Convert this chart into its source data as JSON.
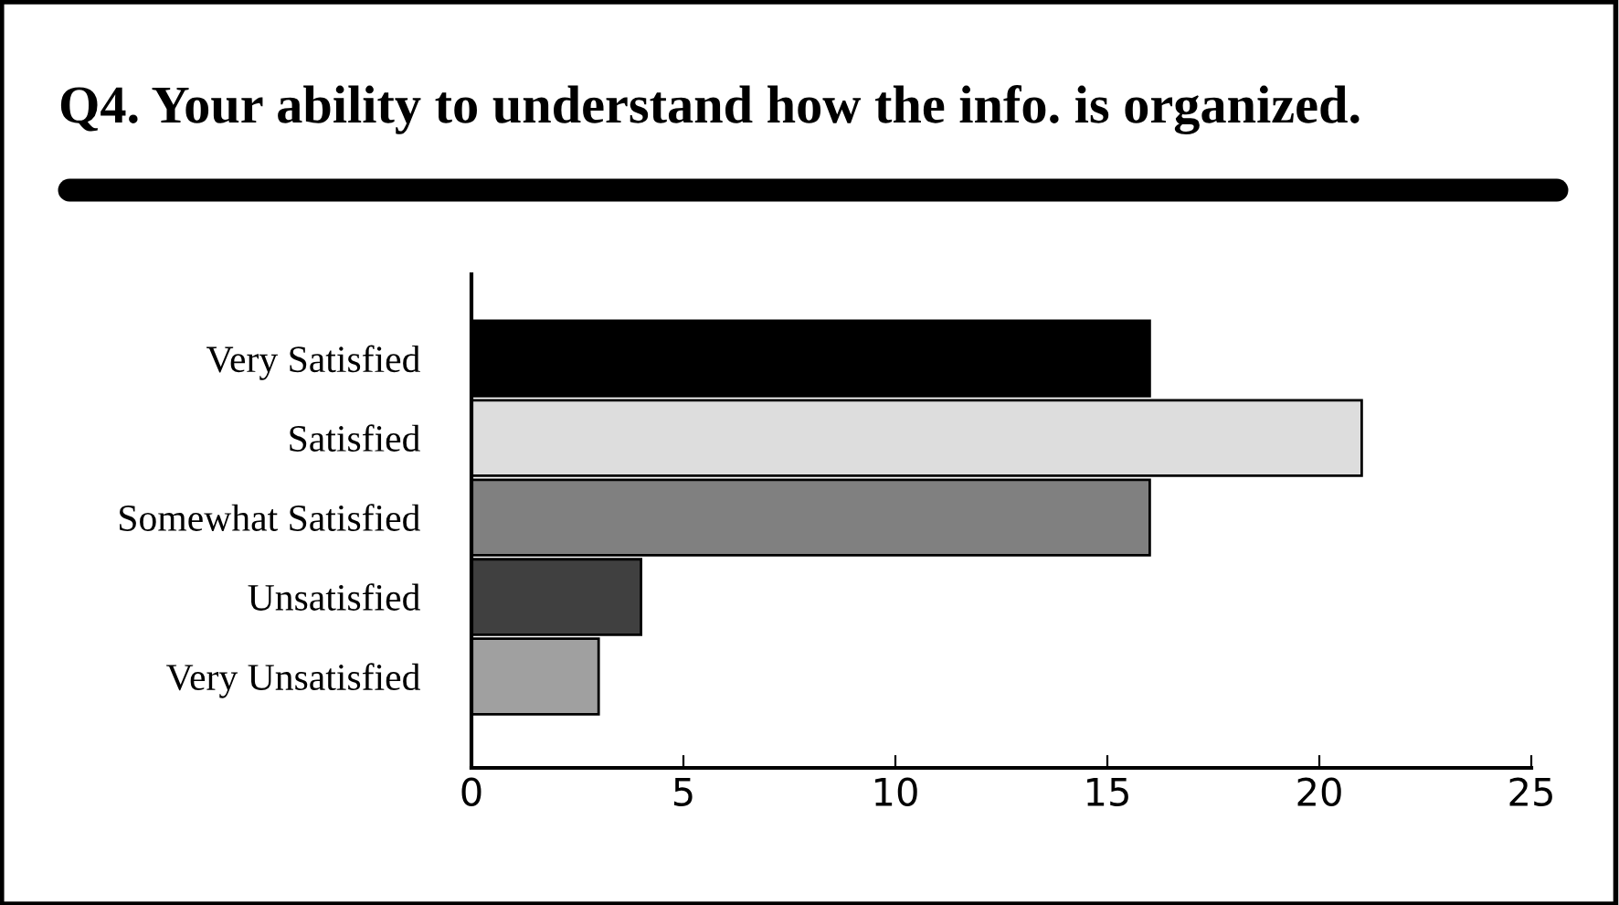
{
  "chart_data": {
    "type": "bar",
    "orientation": "horizontal",
    "title": "Q4. Your ability to understand how the info. is organized.",
    "categories": [
      "Very Satisfied",
      "Satisfied",
      "Somewhat Satisfied",
      "Unsatisfied",
      "Very Unsatisfied"
    ],
    "values": [
      16,
      21,
      16,
      4,
      3
    ],
    "colors": [
      "#000000",
      "#dddddd",
      "#808080",
      "#404040",
      "#a0a0a0"
    ],
    "xlim": [
      0,
      25
    ],
    "xticks": [
      0,
      5,
      10,
      15,
      20,
      25
    ],
    "grid": false,
    "legend": false
  }
}
